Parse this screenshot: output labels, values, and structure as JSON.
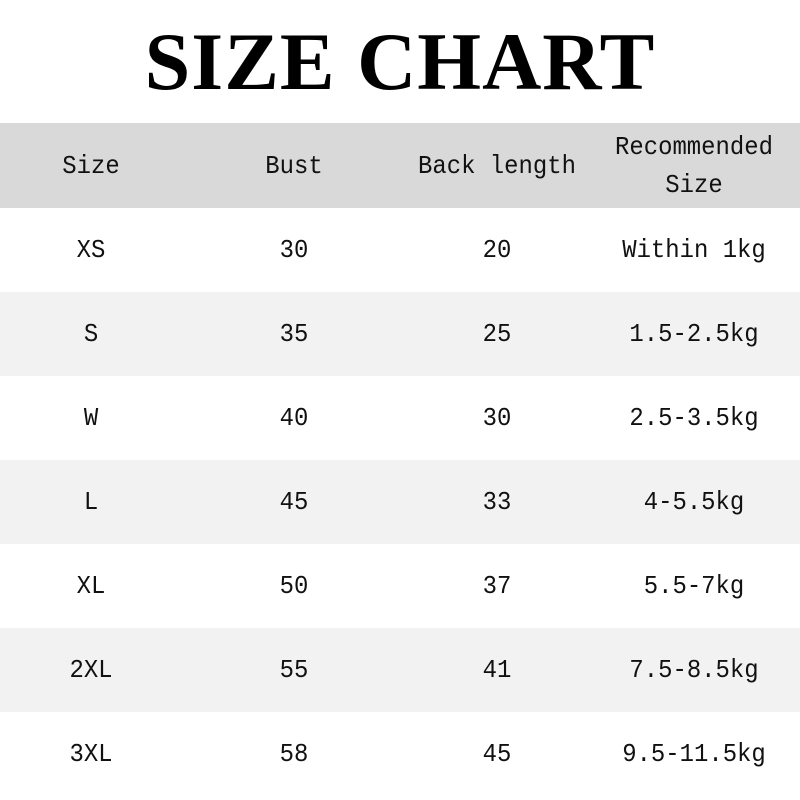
{
  "title": "SIZE CHART",
  "colors": {
    "header_bg": "#d9d9d9",
    "alt_row_bg": "#f2f2f2",
    "row_bg": "#ffffff"
  },
  "table": {
    "headers": [
      "Size",
      "Bust",
      "Back length",
      "Recommended Size"
    ],
    "rows": [
      [
        "XS",
        "30",
        "20",
        "Within 1kg"
      ],
      [
        "S",
        "35",
        "25",
        "1.5-2.5kg"
      ],
      [
        "W",
        "40",
        "30",
        "2.5-3.5kg"
      ],
      [
        "L",
        "45",
        "33",
        "4-5.5kg"
      ],
      [
        "XL",
        "50",
        "37",
        "5.5-7kg"
      ],
      [
        "2XL",
        "55",
        "41",
        "7.5-8.5kg"
      ],
      [
        "3XL",
        "58",
        "45",
        "9.5-11.5kg"
      ]
    ]
  }
}
